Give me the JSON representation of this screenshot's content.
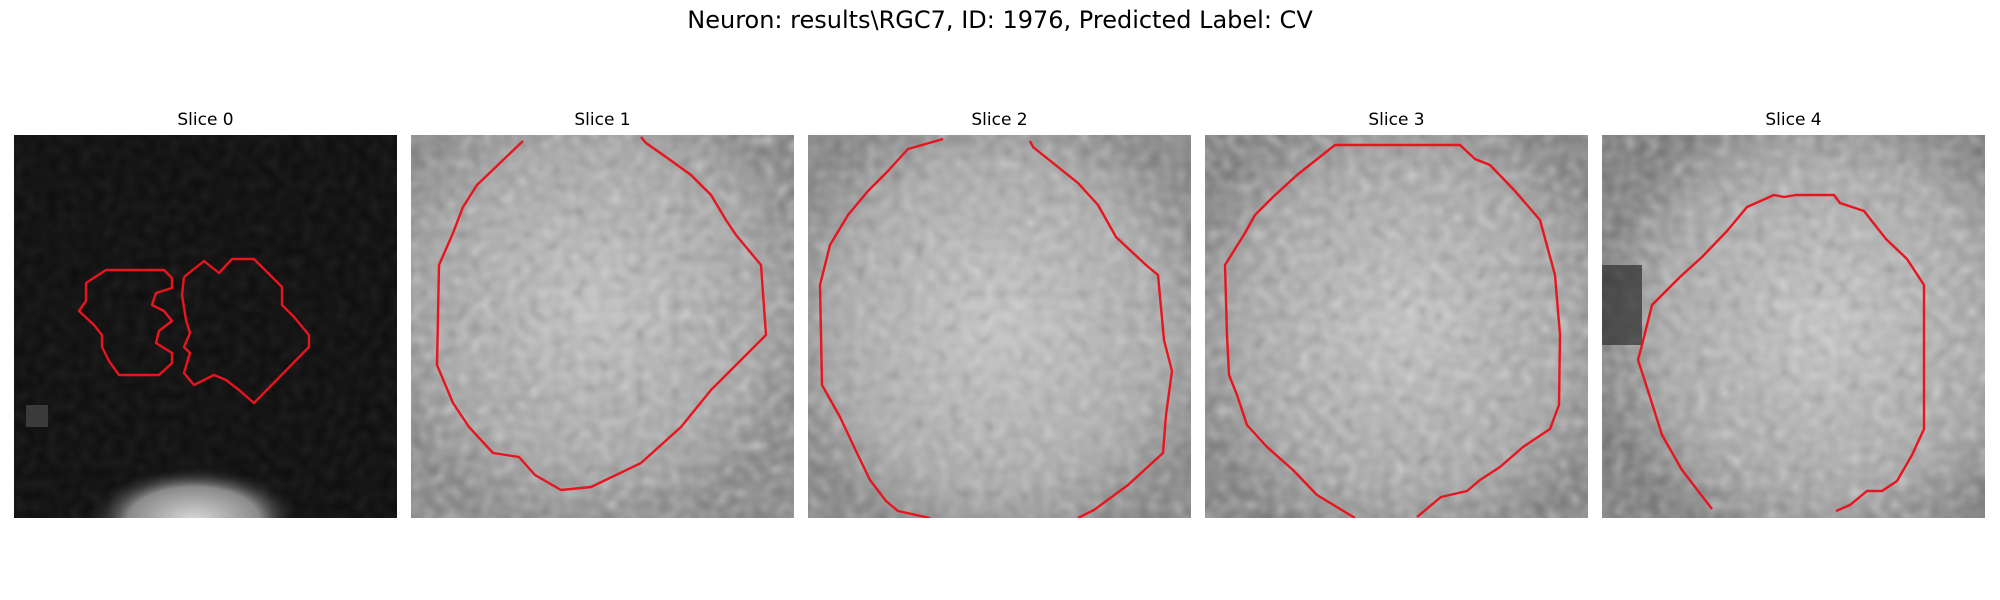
{
  "figure": {
    "title": "Neuron: results\\RGC7, ID: 1976, Predicted Label: CV"
  },
  "panels": [
    {
      "title": "Slice 0"
    },
    {
      "title": "Slice 1"
    },
    {
      "title": "Slice 2"
    },
    {
      "title": "Slice 3"
    },
    {
      "title": "Slice 4"
    }
  ],
  "colors": {
    "contour": "#e8141e",
    "background": "#ffffff"
  }
}
